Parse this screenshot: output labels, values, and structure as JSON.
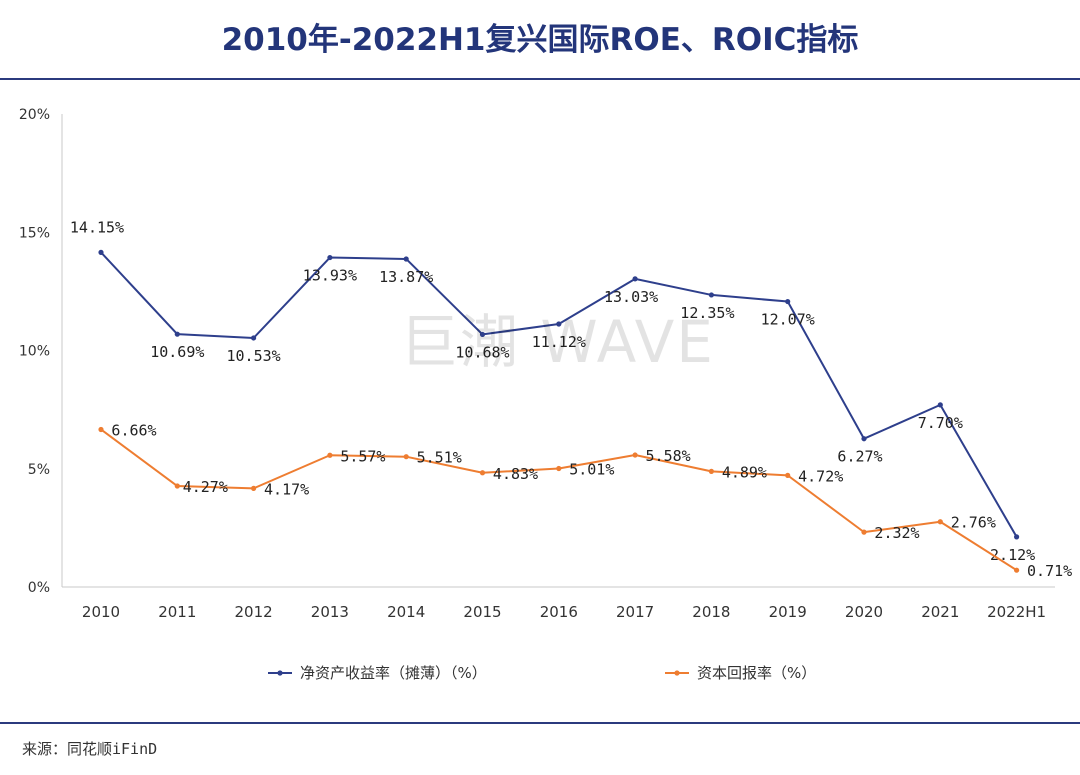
{
  "header": {
    "title": "2010年-2022H1复兴国际ROE、ROIC指标"
  },
  "watermark": "巨潮 WAVE",
  "source": "来源：同花顺iFinD",
  "colors": {
    "roe": "#2e3f8c",
    "roic": "#ee7d31",
    "rule": "#2b3a7e"
  },
  "chart_data": {
    "type": "line",
    "title": "2010年-2022H1复兴国际ROE、ROIC指标",
    "categories": [
      "2010",
      "2011",
      "2012",
      "2013",
      "2014",
      "2015",
      "2016",
      "2017",
      "2018",
      "2019",
      "2020",
      "2021",
      "2022H1"
    ],
    "ylim": [
      0,
      20
    ],
    "yticks": [
      0,
      5,
      10,
      15,
      20
    ],
    "ytick_labels": [
      "0%",
      "5%",
      "10%",
      "15%",
      "20%"
    ],
    "series": [
      {
        "name": "净资产收益率（摊薄）（%）",
        "color": "#2e3f8c",
        "values": [
          14.15,
          10.69,
          10.53,
          13.93,
          13.87,
          10.68,
          11.12,
          13.03,
          12.35,
          12.07,
          6.27,
          7.7,
          2.12
        ],
        "labels": [
          "14.15%",
          "10.69%",
          "10.53%",
          "13.93%",
          "13.87%",
          "10.68%",
          "11.12%",
          "13.03%",
          "12.35%",
          "12.07%",
          "6.27%",
          "7.70%",
          "2.12%"
        ]
      },
      {
        "name": "资本回报率（%）",
        "color": "#ee7d31",
        "values": [
          6.66,
          4.27,
          4.17,
          5.57,
          5.51,
          4.83,
          5.01,
          5.58,
          4.89,
          4.72,
          2.32,
          2.76,
          0.71
        ],
        "labels": [
          "6.66%",
          "4.27%",
          "4.17%",
          "5.57%",
          "5.51%",
          "4.83%",
          "5.01%",
          "5.58%",
          "4.89%",
          "4.72%",
          "2.32%",
          "2.76%",
          "0.71%"
        ]
      }
    ],
    "legend": "bottom-center"
  }
}
